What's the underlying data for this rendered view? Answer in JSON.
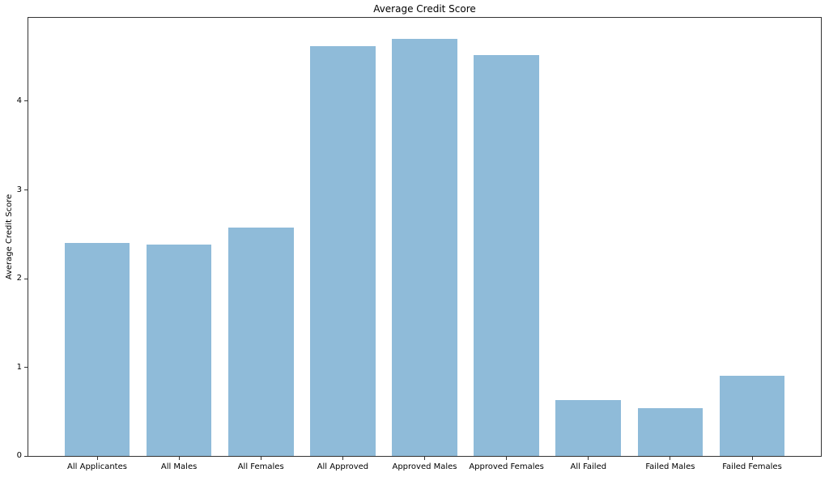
{
  "chart_data": {
    "type": "bar",
    "title": "Average Credit Score",
    "xlabel": "",
    "ylabel": "Average Credit Score",
    "categories": [
      "All Applicantes",
      "All Males",
      "All Females",
      "All Approved",
      "Approved Males",
      "Approved Females",
      "All Failed",
      "Failed Males",
      "Failed Females"
    ],
    "values": [
      2.4,
      2.38,
      2.58,
      4.62,
      4.7,
      4.52,
      0.63,
      0.54,
      0.9
    ],
    "yticks": [
      0,
      1,
      2,
      3,
      4
    ],
    "ylim": [
      0,
      4.94
    ],
    "bar_color": "#8fbbd9",
    "spine_color": "#333333",
    "text_color": "#000000",
    "background_color": "#ffffff",
    "grid": false,
    "legend_position": "none"
  }
}
